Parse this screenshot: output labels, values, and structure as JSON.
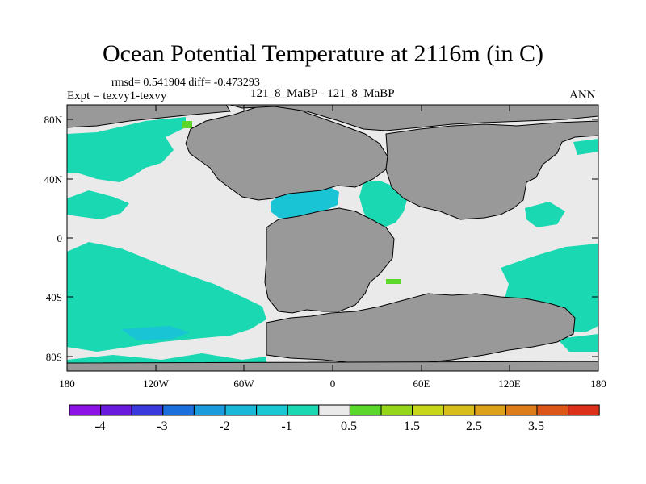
{
  "title": "Ocean Potential Temperature at 2116m (in C)",
  "stats": "rmsd= 0.541904 diff= -0.473293",
  "left_label": "Expt = texvy1-texvy",
  "center_label": "121_8_MaBP - 121_8_MaBP",
  "right_label": "ANN",
  "colors": {
    "land": "#999999",
    "zero_band": "#eaeaea",
    "cool_band": "#19d8b2",
    "cooler_band": "#19c4d4",
    "warm_band": "#5bd62b"
  },
  "map": {
    "x_ticks": [
      "180",
      "120W",
      "60W",
      "0",
      "60E",
      "120E",
      "180"
    ],
    "y_ticks": [
      "80N",
      "40N",
      "0",
      "40S",
      "80S"
    ]
  },
  "colorbar": {
    "colors": [
      "#8d12e6",
      "#6a1adc",
      "#3a39dc",
      "#1a6fdc",
      "#199bdc",
      "#19b8d8",
      "#19c8d2",
      "#19d8b2",
      "#eaeaea",
      "#5bd62b",
      "#96d61a",
      "#c8d61a",
      "#d8be1a",
      "#dca21a",
      "#dc7d1a",
      "#dc561a",
      "#dc301a"
    ],
    "labels": [
      "-4",
      "-3",
      "-2",
      "-1",
      "0.5",
      "1.5",
      "2.5",
      "3.5"
    ]
  }
}
